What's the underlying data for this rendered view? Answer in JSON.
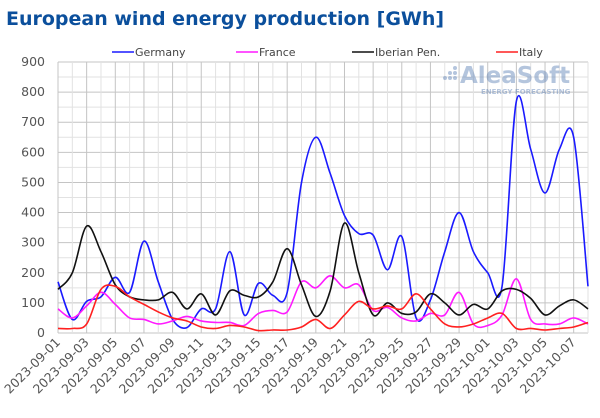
{
  "chart_data": {
    "type": "line",
    "title": "European wind energy production [GWh]",
    "xlabel": "",
    "ylabel": "",
    "ylim": [
      0,
      900
    ],
    "yticks": [
      "0",
      "100",
      "200",
      "300",
      "400",
      "500",
      "600",
      "700",
      "800",
      "900"
    ],
    "grid": true,
    "legend_position": "top",
    "x": [
      "2023-09-01",
      "2023-09-02",
      "2023-09-03",
      "2023-09-04",
      "2023-09-05",
      "2023-09-06",
      "2023-09-07",
      "2023-09-08",
      "2023-09-09",
      "2023-09-10",
      "2023-09-11",
      "2023-09-12",
      "2023-09-13",
      "2023-09-14",
      "2023-09-15",
      "2023-09-16",
      "2023-09-17",
      "2023-09-18",
      "2023-09-19",
      "2023-09-20",
      "2023-09-21",
      "2023-09-22",
      "2023-09-23",
      "2023-09-24",
      "2023-09-25",
      "2023-09-26",
      "2023-09-27",
      "2023-09-28",
      "2023-09-29",
      "2023-09-30",
      "2023-10-01",
      "2023-10-02",
      "2023-10-03",
      "2023-10-04",
      "2023-10-05",
      "2023-10-06",
      "2023-10-07",
      "2023-10-08"
    ],
    "xticks": [
      "2023-09-01",
      "2023-09-03",
      "2023-09-05",
      "2023-09-07",
      "2023-09-09",
      "2023-09-11",
      "2023-09-13",
      "2023-09-15",
      "2023-09-17",
      "2023-09-19",
      "2023-09-21",
      "2023-09-23",
      "2023-09-25",
      "2023-09-27",
      "2023-09-29",
      "2023-10-01",
      "2023-10-03",
      "2023-10-05",
      "2023-10-07"
    ],
    "series": [
      {
        "name": "Germany",
        "color": "#1a1aff",
        "values": [
          170,
          45,
          105,
          120,
          185,
          135,
          305,
          170,
          45,
          18,
          80,
          80,
          270,
          60,
          165,
          125,
          135,
          500,
          650,
          530,
          390,
          330,
          325,
          210,
          320,
          50,
          110,
          270,
          400,
          270,
          200,
          155,
          770,
          610,
          465,
          610,
          650,
          155
        ]
      },
      {
        "name": "France",
        "color": "#ff1aff",
        "values": [
          80,
          50,
          90,
          135,
          95,
          50,
          45,
          30,
          40,
          55,
          40,
          35,
          35,
          25,
          65,
          75,
          70,
          170,
          150,
          190,
          150,
          160,
          75,
          85,
          50,
          40,
          65,
          60,
          135,
          30,
          25,
          60,
          180,
          45,
          30,
          30,
          50,
          30
        ]
      },
      {
        "name": "Iberian Pen.",
        "color": "#111111",
        "values": [
          145,
          200,
          355,
          270,
          160,
          120,
          110,
          110,
          135,
          80,
          130,
          60,
          140,
          125,
          120,
          170,
          280,
          160,
          55,
          140,
          365,
          200,
          60,
          100,
          65,
          70,
          130,
          100,
          60,
          95,
          80,
          140,
          145,
          115,
          60,
          90,
          110,
          80
        ]
      },
      {
        "name": "Italy",
        "color": "#ff2020",
        "values": [
          15,
          15,
          30,
          145,
          155,
          120,
          95,
          70,
          50,
          40,
          20,
          15,
          25,
          20,
          8,
          10,
          10,
          20,
          45,
          15,
          60,
          105,
          80,
          90,
          80,
          130,
          80,
          30,
          20,
          30,
          50,
          65,
          15,
          15,
          10,
          15,
          20,
          35
        ]
      }
    ]
  },
  "logo": {
    "name": "AleaSoft",
    "tagline": "ENERGY FORECASTING"
  }
}
